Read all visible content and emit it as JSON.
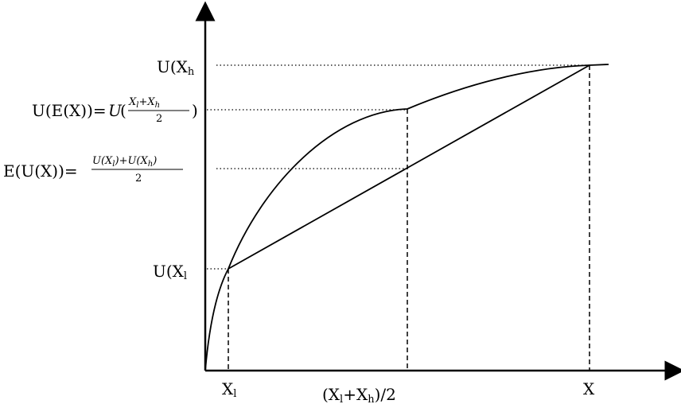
{
  "y_labels": {
    "u_xh": {
      "base": "U(X",
      "sub": "h"
    },
    "u_ex": {
      "prefix": "U(E(X))=",
      "u": "U",
      "open": "(",
      "frac_num_a": "X",
      "frac_num_a_sub": "l",
      "plus": "+",
      "frac_num_b": "X",
      "frac_num_b_sub": "h",
      "frac_den": "2",
      "close": ")"
    },
    "e_ux": {
      "prefix": "E(U(X))=",
      "frac_num_a": "U(X",
      "frac_num_a_sub": "l",
      "frac_mid": ")+U(X",
      "frac_num_b_sub": "h",
      "frac_end": ")",
      "frac_den": "2"
    },
    "u_xl": {
      "base": "U(X",
      "sub": "l"
    }
  },
  "x_labels": {
    "xl": {
      "base": "X",
      "sub": "l"
    },
    "mid": {
      "open": "(X",
      "sub_a": "l",
      "plus": "+X",
      "sub_b": "h",
      "close": ")/2"
    },
    "xh": {
      "base": "X"
    }
  }
}
